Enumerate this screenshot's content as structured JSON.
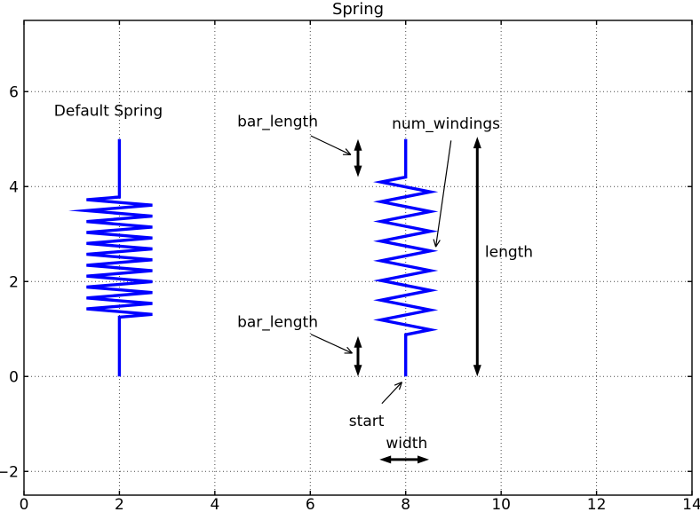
{
  "colors": {
    "spring_blue": "#0000ff",
    "annotation_black": "#000000",
    "background": "#ffffff"
  },
  "chart_data": {
    "type": "line",
    "title": "Spring",
    "xlabel": "",
    "ylabel": "",
    "xlim": [
      0,
      14
    ],
    "ylim": [
      -2.5,
      7.5
    ],
    "grid": {
      "show": true,
      "style": "dotted"
    },
    "xticks": {
      "values": [
        0,
        2,
        4,
        6,
        8,
        10,
        12,
        14
      ],
      "labels": [
        "0",
        "2",
        "4",
        "6",
        "8",
        "10",
        "12",
        "14"
      ]
    },
    "yticks": {
      "values": [
        -2,
        0,
        2,
        4,
        6
      ],
      "labels": [
        "−2",
        "0",
        "2",
        "4",
        "6"
      ]
    },
    "springs": [
      {
        "name": "default-spring",
        "color": "#0000ff",
        "x": 2,
        "y_start": 0,
        "length": 5,
        "bar_length_top": 1.22,
        "bar_length_bottom": 1.25,
        "half_width": 0.69,
        "num_windings": 11
      },
      {
        "name": "annotated-spring",
        "color": "#0000ff",
        "x": 8,
        "y_start": 0,
        "length": 5,
        "bar_length_top": 0.8,
        "bar_length_bottom": 0.88,
        "half_width": 0.52,
        "num_windings": 8
      }
    ],
    "dimension_arrows": [
      {
        "name": "bar-length-top-arrow",
        "x1": 7.0,
        "y1": 4.2,
        "x2": 7.0,
        "y2": 5.0
      },
      {
        "name": "bar-length-bottom-arrow",
        "x1": 7.0,
        "y1": 0.0,
        "x2": 7.0,
        "y2": 0.85
      },
      {
        "name": "length-arrow",
        "x1": 9.5,
        "y1": 0.0,
        "x2": 9.5,
        "y2": 5.05
      },
      {
        "name": "width-arrow",
        "x1": 7.45,
        "y1": -1.75,
        "x2": 8.49,
        "y2": -1.75
      }
    ],
    "labels": [
      {
        "text": "Default Spring",
        "x": 0.63,
        "y": 5.6,
        "anchor": "start"
      },
      {
        "text": "bar_length",
        "x": 4.47,
        "y": 5.38,
        "anchor": "start",
        "arrow": {
          "x1": 6.01,
          "y1": 5.07,
          "x2": 6.85,
          "y2": 4.67
        }
      },
      {
        "text": "bar_length",
        "x": 4.47,
        "y": 1.15,
        "anchor": "start",
        "arrow": {
          "x1": 6.01,
          "y1": 0.89,
          "x2": 6.88,
          "y2": 0.49
        }
      },
      {
        "text": "num_windings",
        "x": 7.71,
        "y": 5.33,
        "anchor": "start",
        "arrow": {
          "x1": 8.95,
          "y1": 4.97,
          "x2": 8.63,
          "y2": 2.73
        }
      },
      {
        "text": "length",
        "x": 9.66,
        "y": 2.63,
        "anchor": "start"
      },
      {
        "text": "start",
        "x": 6.81,
        "y": -0.93,
        "anchor": "start",
        "arrow": {
          "x1": 7.5,
          "y1": -0.57,
          "x2": 7.92,
          "y2": -0.12
        }
      },
      {
        "text": "width",
        "x": 8.02,
        "y": -1.4,
        "anchor": "middle"
      }
    ]
  }
}
